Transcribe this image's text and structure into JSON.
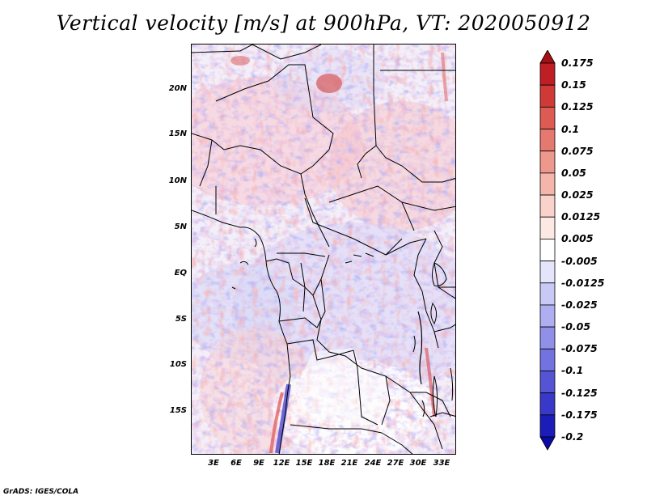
{
  "title": "Vertical velocity [m/s] at 900hPa, VT: 2020050912",
  "credit": "GrADS: IGES/COLA",
  "map": {
    "lat_labels": [
      "20N",
      "15N",
      "10N",
      "5N",
      "EQ",
      "5S",
      "10S",
      "15S"
    ],
    "lon_labels": [
      "3E",
      "6E",
      "9E",
      "12E",
      "15E",
      "18E",
      "21E",
      "24E",
      "27E",
      "30E",
      "33E"
    ]
  },
  "colorbar": {
    "labels": [
      "0.175",
      "0.15",
      "0.125",
      "0.1",
      "0.075",
      "0.05",
      "0.025",
      "0.0125",
      "0.005",
      "-0.005",
      "-0.0125",
      "-0.025",
      "-0.05",
      "-0.075",
      "-0.1",
      "-0.125",
      "-0.175",
      "-0.2"
    ],
    "colors": [
      "#a50f15",
      "#be1e24",
      "#d03a36",
      "#dd5b52",
      "#e6796f",
      "#ee978c",
      "#f4b5ab",
      "#f9d2cb",
      "#fde9e4",
      "#ffffff",
      "#e4e4fb",
      "#c9c9f6",
      "#aeaef0",
      "#9090e9",
      "#7272e0",
      "#5454d5",
      "#3838c9",
      "#1c1cb9",
      "#0a0aa5"
    ]
  }
}
